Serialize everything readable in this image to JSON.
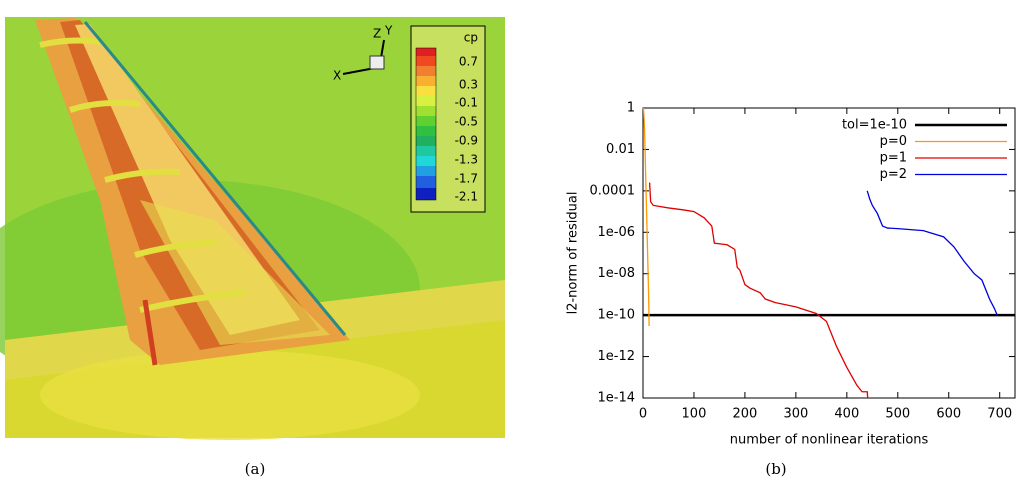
{
  "figure_a": {
    "caption": "(a)",
    "colorbar": {
      "title": "cp",
      "labels": [
        "0.7",
        "0.3",
        "-0.1",
        "-0.5",
        "-0.9",
        "-1.3",
        "-1.7",
        "-2.1"
      ]
    },
    "axes": [
      "X",
      "Z",
      "Y"
    ]
  },
  "chart_data": {
    "type": "line",
    "caption": "(b)",
    "xlabel": "number of nonlinear iterations",
    "ylabel": "l2-norm of residual",
    "log_y": true,
    "legend": "upper right",
    "xlim": [
      0,
      730
    ],
    "xticks": [
      0,
      100,
      200,
      300,
      400,
      500,
      600,
      700
    ],
    "ylim": [
      1e-14,
      1
    ],
    "yticks": [
      1,
      0.01,
      0.0001,
      {
        "value": 1e-06,
        "label": "1e-06"
      },
      {
        "value": 1e-08,
        "label": "1e-08"
      },
      {
        "value": 1e-10,
        "label": "1e-10"
      },
      {
        "value": 1e-12,
        "label": "1e-12"
      },
      {
        "value": 1e-14,
        "label": "1e-14"
      }
    ],
    "series": [
      {
        "name": "tol=1e-10",
        "color": "#000000",
        "x": [
          0,
          730
        ],
        "values": [
          1e-10,
          1e-10
        ]
      },
      {
        "name": "p=0",
        "color": "#ff9900",
        "x": [
          1,
          3,
          5,
          7,
          9,
          11,
          12
        ],
        "values": [
          1,
          0.1,
          0.001,
          1e-05,
          1e-07,
          1e-09,
          3e-11
        ]
      },
      {
        "name": "p=1",
        "color": "#e00000",
        "x": [
          13,
          15,
          20,
          30,
          50,
          80,
          100,
          120,
          135,
          140,
          165,
          180,
          185,
          190,
          200,
          210,
          230,
          240,
          260,
          300,
          340,
          360,
          380,
          400,
          420,
          430,
          440,
          441
        ],
        "values": [
          0.00025,
          3e-05,
          2e-05,
          1.8e-05,
          1.5e-05,
          1.2e-05,
          1e-05,
          5e-06,
          2e-06,
          3e-07,
          2.5e-07,
          1.5e-07,
          2e-08,
          1.5e-08,
          3e-09,
          2e-09,
          1.2e-09,
          6e-10,
          4e-10,
          2.5e-10,
          1.2e-10,
          5e-11,
          3e-12,
          3e-13,
          4e-14,
          2e-14,
          2e-14,
          1e-14
        ]
      },
      {
        "name": "p=2",
        "color": "#0000e0",
        "x": [
          440,
          445,
          450,
          460,
          470,
          480,
          500,
          550,
          590,
          610,
          630,
          650,
          665,
          680,
          690,
          695
        ],
        "values": [
          0.0001,
          4e-05,
          2e-05,
          8e-06,
          2e-06,
          1.6e-06,
          1.5e-06,
          1.2e-06,
          6e-07,
          2e-07,
          4e-08,
          1e-08,
          5e-09,
          6e-10,
          2e-10,
          1e-10
        ]
      }
    ]
  }
}
